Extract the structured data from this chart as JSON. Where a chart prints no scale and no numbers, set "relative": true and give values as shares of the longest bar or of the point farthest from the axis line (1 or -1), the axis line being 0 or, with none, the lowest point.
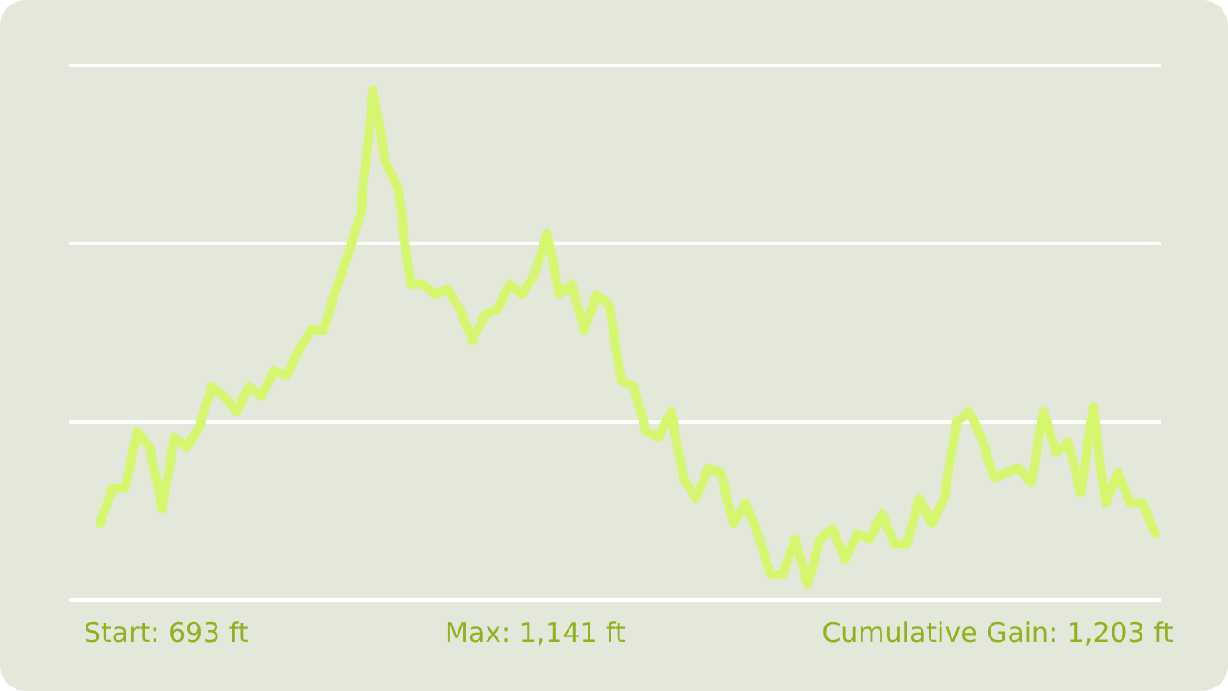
{
  "chart_data": {
    "type": "line",
    "relative": true,
    "color": "#d6f66f",
    "marker": "none",
    "line_style": "solid",
    "categories": [
      null,
      null,
      null,
      null,
      null,
      null,
      null,
      null,
      null,
      null,
      null,
      null,
      null,
      null,
      null,
      null,
      null,
      null,
      null,
      null,
      null,
      null,
      null,
      null,
      null,
      null,
      null,
      null,
      null,
      null,
      null,
      null,
      null,
      null,
      null,
      null,
      null,
      null,
      null,
      null,
      null,
      null,
      null,
      null,
      null,
      null,
      null,
      null,
      null,
      null,
      null,
      null,
      null,
      null,
      null,
      null,
      null,
      null,
      null,
      null,
      null,
      null,
      null,
      null,
      null,
      null,
      null,
      null,
      null,
      null,
      null,
      null,
      null,
      null,
      null,
      null,
      null,
      null,
      null,
      null,
      null,
      null,
      null,
      null,
      null,
      null
    ],
    "values": [
      0.15,
      0.22,
      0.22,
      0.33,
      0.3,
      0.18,
      0.32,
      0.3,
      0.34,
      0.42,
      0.4,
      0.37,
      0.42,
      0.4,
      0.45,
      0.44,
      0.49,
      0.53,
      0.53,
      0.61,
      0.68,
      0.76,
      1,
      0.86,
      0.81,
      0.62,
      0.62,
      0.6,
      0.61,
      0.57,
      0.51,
      0.56,
      0.57,
      0.62,
      0.6,
      0.64,
      0.72,
      0.6,
      0.62,
      0.53,
      0.6,
      0.58,
      0.43,
      0.42,
      0.33,
      0.32,
      0.37,
      0.24,
      0.2,
      0.26,
      0.25,
      0.15,
      0.19,
      0.13,
      0.05,
      0.05,
      0.12,
      0.03,
      0.12,
      0.14,
      0.08,
      0.13,
      0.12,
      0.17,
      0.11,
      0.11,
      0.2,
      0.15,
      0.2,
      0.35,
      0.37,
      0.32,
      0.24,
      0.25,
      0.26,
      0.23,
      0.37,
      0.29,
      0.31,
      0.21,
      0.38,
      0.19,
      0.25,
      0.19,
      0.19,
      0.13
    ],
    "ref_lines": [
      {
        "axis": "y",
        "value": 0.35,
        "color": "#ffffff"
      },
      {
        "axis": "y",
        "value": 0.7,
        "color": "#ffffff"
      },
      {
        "axis": "y",
        "value": 1.05,
        "color": "#ffffff"
      }
    ],
    "annotations": [
      "Start: 693 ft",
      "Max: 1,141 ft",
      "Cumulative Gain: 1,203 ft"
    ]
  }
}
